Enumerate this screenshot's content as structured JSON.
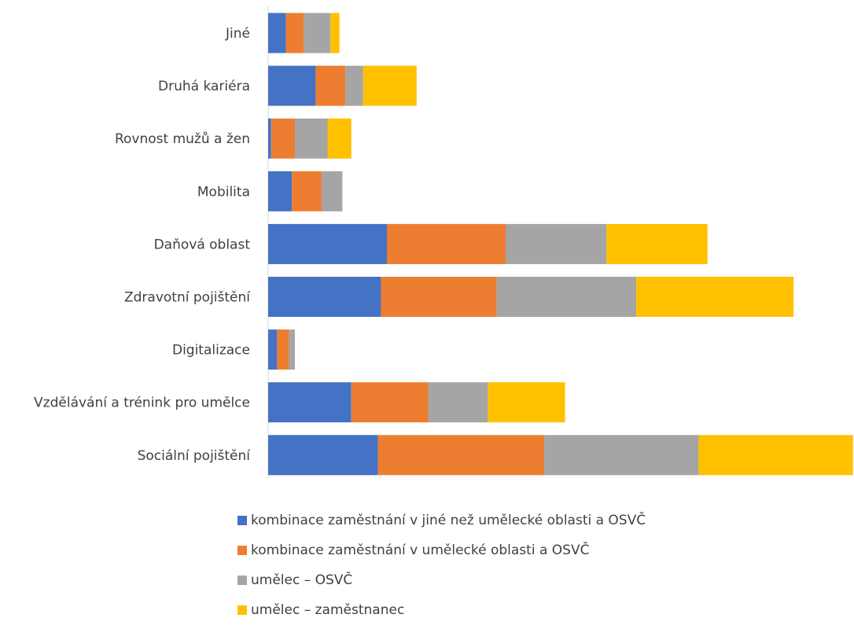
{
  "chart_data": {
    "type": "bar",
    "orientation": "horizontal",
    "stacked": true,
    "categories": [
      "Jiné",
      "Druhá kariéra",
      "Rovnost mužů a žen",
      "Mobilita",
      "Daňová oblast",
      "Zdravotní pojištění",
      "Digitalizace",
      "Vzdělávání a trénink pro umělce",
      "Sociální pojištění"
    ],
    "series": [
      {
        "name": "kombinace zaměstnání v jiné než umělecké oblasti a OSVČ",
        "color": "#4472C4",
        "values": [
          3,
          8,
          0.5,
          4,
          20,
          19,
          1.5,
          14,
          18.5
        ]
      },
      {
        "name": "kombinace zaměstnání v umělecké oblasti a OSVČ",
        "color": "#ED7D31",
        "values": [
          3,
          5,
          4,
          5,
          20,
          19.5,
          2,
          13,
          28
        ]
      },
      {
        "name": "umělec – OSVČ",
        "color": "#A5A5A5",
        "values": [
          4.5,
          3,
          5.5,
          3.5,
          17,
          23.5,
          1,
          10,
          26
        ]
      },
      {
        "name": "umělec – zaměstnanec",
        "color": "#FFC000",
        "values": [
          1.5,
          9,
          4,
          0,
          17,
          26.5,
          0,
          13,
          26
        ]
      }
    ],
    "xlim": [
      0,
      98.5
    ],
    "grid": false,
    "legend_position": "bottom"
  }
}
